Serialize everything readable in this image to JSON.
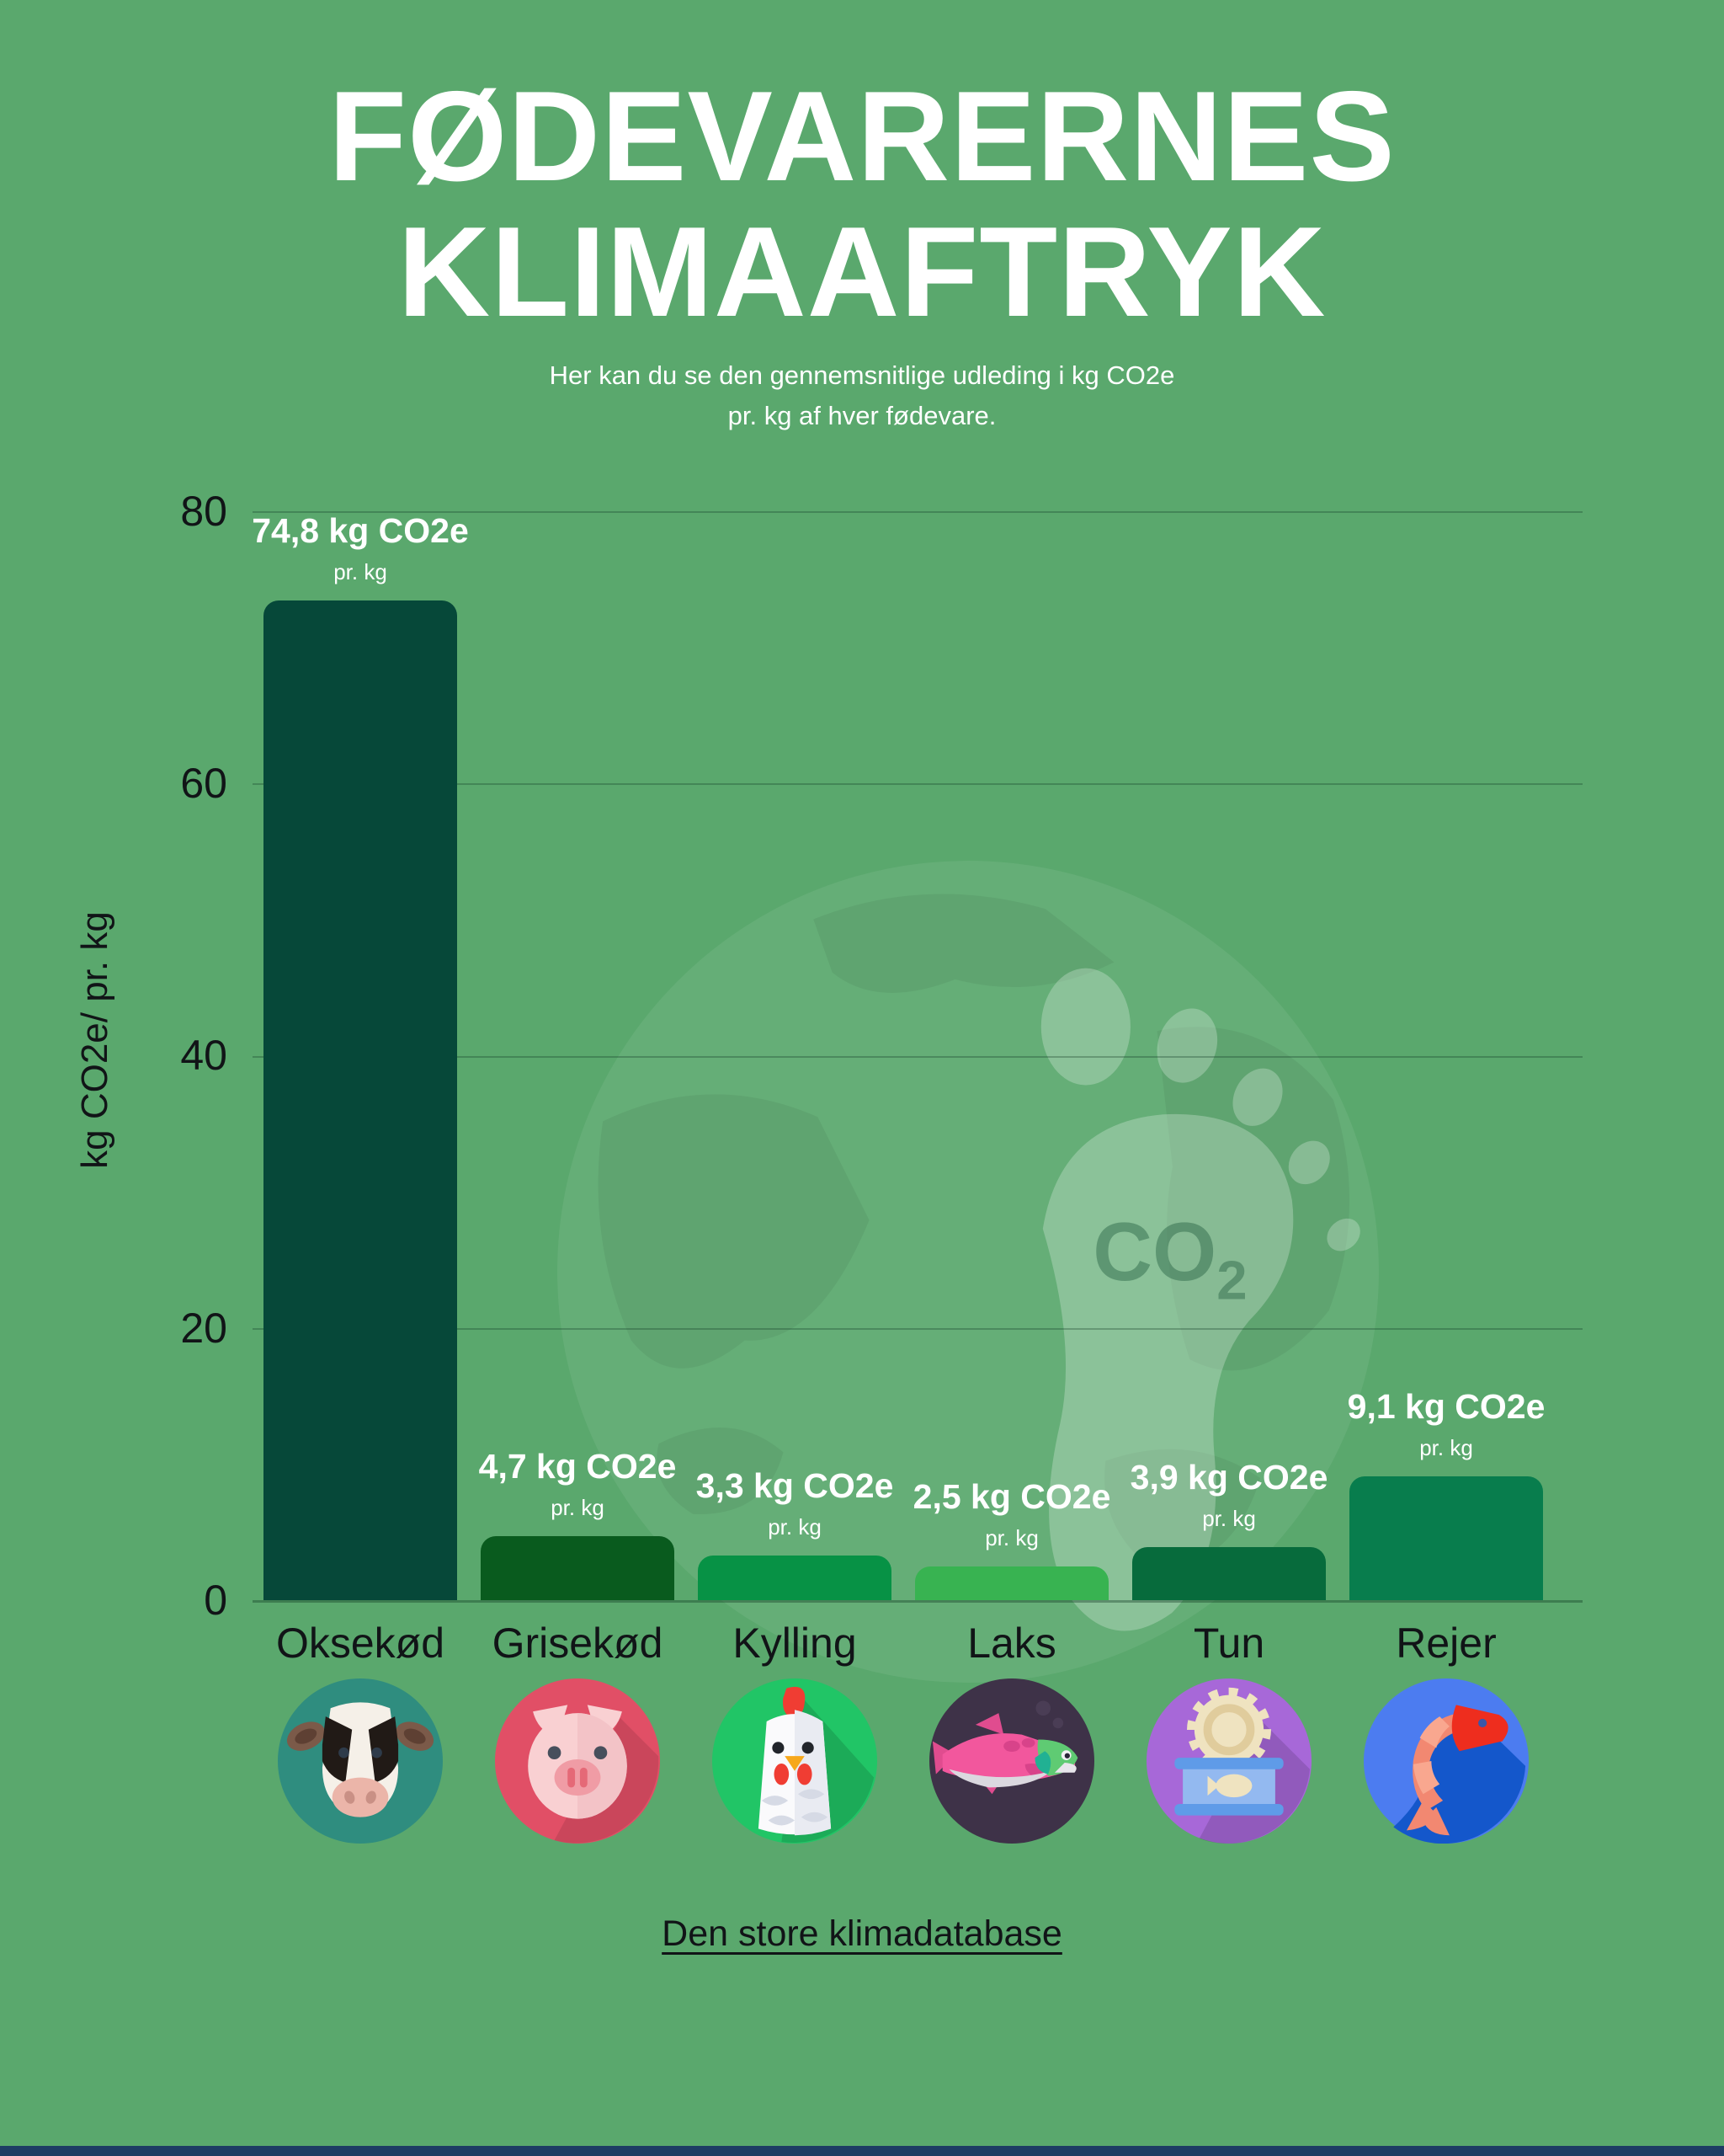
{
  "page": {
    "title_line1": "FØDEVARERNES",
    "title_line2": "KLIMAAFTRYK",
    "subtitle_line1": "Her kan du se den gennemsnitlige udleding i kg CO2e",
    "subtitle_line2": "pr. kg af hver fødevare.",
    "source_link": "Den store klimadatabase"
  },
  "colors": {
    "background": "#5AA86D",
    "bar_colors": [
      "#064839",
      "#095B1E",
      "#079245",
      "#38B351",
      "#076B3C",
      "#087D4D"
    ],
    "icon_circle_colors": [
      "#2F8D7F",
      "#E14F66",
      "#21C566",
      "#3E3248",
      "#A768D8",
      "#4C7CF0"
    ],
    "bottom_strip": "#1E3C64",
    "text_dark": "#111417",
    "text_light": "#FFFFFF"
  },
  "watermark": {
    "co2_text": "CO",
    "co2_sub": "2"
  },
  "chart_data": {
    "type": "bar",
    "title": "FØDEVARERNES KLIMAAFTRYK",
    "subtitle": "Her kan du se den gennemsnitlige udleding i kg CO2e pr. kg af hver fødevare.",
    "categories": [
      "Oksekød",
      "Grisekød",
      "Kylling",
      "Laks",
      "Tun",
      "Rejer"
    ],
    "values": [
      74.8,
      4.7,
      3.3,
      2.5,
      3.9,
      9.1
    ],
    "value_labels": [
      "74,8 kg CO2e",
      "4,7 kg CO2e",
      "3,3 kg CO2e",
      "2,5 kg CO2e",
      "3,9 kg CO2e",
      "9,1 kg CO2e"
    ],
    "value_sublabel": "pr. kg",
    "xlabel": "",
    "ylabel": "kg CO2e/ pr. kg",
    "ylim": [
      0,
      80
    ],
    "yticks": [
      0,
      20,
      40,
      60,
      80
    ],
    "ytick_labels_desc": [
      "80",
      "60",
      "40",
      "20",
      "0"
    ],
    "grid": true,
    "legend_position": "none",
    "icons": [
      "cow-icon",
      "pig-icon",
      "chicken-icon",
      "salmon-icon",
      "tuna-can-icon",
      "shrimp-icon"
    ]
  }
}
